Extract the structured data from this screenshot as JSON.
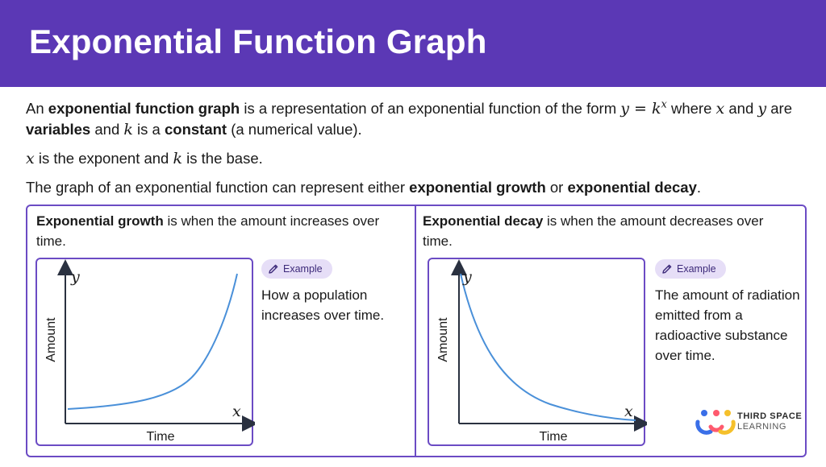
{
  "header": {
    "title": "Exponential Function Graph"
  },
  "intro": {
    "p1_a": "An ",
    "p1_b": "exponential function graph",
    "p1_c": " is a representation of an exponential function of the form ",
    "p1_eq_y": "y = k",
    "p1_eq_x": "x",
    "p1_d": " where ",
    "p1_x": "x",
    "p1_e": " and ",
    "p1_y": "y",
    "p1_f": " are ",
    "p1_g": "variables",
    "p1_h": " and ",
    "p1_k": "k",
    "p1_i": " is a ",
    "p1_j": "constant",
    "p1_l": " (a numerical value).",
    "p2_x": "x",
    "p2_a": " is the exponent and ",
    "p2_k": "k",
    "p2_b": " is the base.",
    "p3_a": "The graph of an exponential function can represent either ",
    "p3_b": "exponential growth",
    "p3_c": " or ",
    "p3_d": "exponential decay",
    "p3_e": "."
  },
  "growth": {
    "term": "Exponential growth",
    "desc": " is when the amount increases over time.",
    "y_axis": "y",
    "x_axis": "x",
    "y_label": "Amount",
    "x_label": "Time",
    "badge": "Example",
    "example": "How a population increases over time."
  },
  "decay": {
    "term": "Exponential decay",
    "desc": " is when the amount decreases over time.",
    "y_axis": "y",
    "x_axis": "x",
    "y_label": "Amount",
    "x_label": "Time",
    "badge": "Example",
    "example": "The amount of radiation emitted from a radioactive substance over time."
  },
  "logo": {
    "line1": "THIRD SPACE",
    "line2": "LEARNING"
  },
  "colors": {
    "header": "#5b38b5",
    "border": "#6b4bc4",
    "curve": "#4a90d9",
    "badge_bg": "#e6def7"
  }
}
